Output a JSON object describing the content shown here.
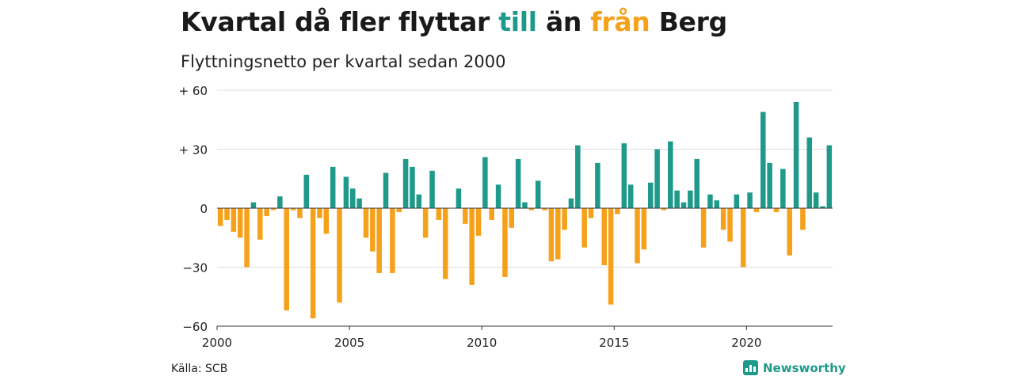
{
  "header": {
    "title_parts": [
      {
        "text": "Kvartal då fler flyttar ",
        "color": "#1a1a1a"
      },
      {
        "text": "till",
        "color": "#1f9a8a"
      },
      {
        "text": " än ",
        "color": "#1a1a1a"
      },
      {
        "text": "från",
        "color": "#f5a11a"
      },
      {
        "text": " Berg",
        "color": "#1a1a1a"
      }
    ],
    "subtitle": "Flyttningsnetto per kvartal sedan 2000"
  },
  "footer": {
    "source": "Källa: SCB",
    "brand": "Newsworthy",
    "brand_icon": "bar-chart-icon"
  },
  "colors": {
    "positive": "#1f9a8a",
    "negative": "#f5a11a",
    "grid": "#dddddd",
    "baseline": "#333333"
  },
  "chart_data": {
    "type": "bar",
    "x_start": "2000 Q1",
    "x_interval": "quarter",
    "xlabel": "",
    "ylabel": "",
    "ylim": [
      -60,
      60
    ],
    "y_ticks": [
      60,
      30,
      0,
      -30,
      -60
    ],
    "y_tick_labels": [
      "+ 60",
      "+ 30",
      "0",
      "−30",
      "−60"
    ],
    "x_ticks": [
      2000,
      2005,
      2010,
      2015,
      2020
    ],
    "x_tick_labels": [
      "2000",
      "2005",
      "2010",
      "2015",
      "2020"
    ],
    "grid": true,
    "legend": false,
    "values": [
      -9,
      -6,
      -12,
      -15,
      -30,
      3,
      -16,
      -4,
      -1,
      6,
      -52,
      -1,
      -5,
      17,
      -56,
      -5,
      -13,
      21,
      -48,
      16,
      10,
      5,
      -15,
      -22,
      -33,
      18,
      -33,
      -2,
      25,
      21,
      7,
      -15,
      19,
      -6,
      -36,
      0,
      10,
      -8,
      -39,
      -14,
      26,
      -6,
      12,
      -35,
      -10,
      25,
      3,
      -1,
      14,
      -1,
      -27,
      -26,
      -11,
      5,
      32,
      -20,
      -5,
      23,
      -29,
      -49,
      -3,
      33,
      12,
      -28,
      -21,
      13,
      30,
      -1,
      34,
      9,
      3,
      9,
      25,
      -20,
      7,
      4,
      -11,
      -17,
      7,
      -30,
      8,
      -2,
      49,
      23,
      -2,
      20,
      -24,
      54,
      -11,
      36,
      8,
      1,
      32
    ]
  }
}
